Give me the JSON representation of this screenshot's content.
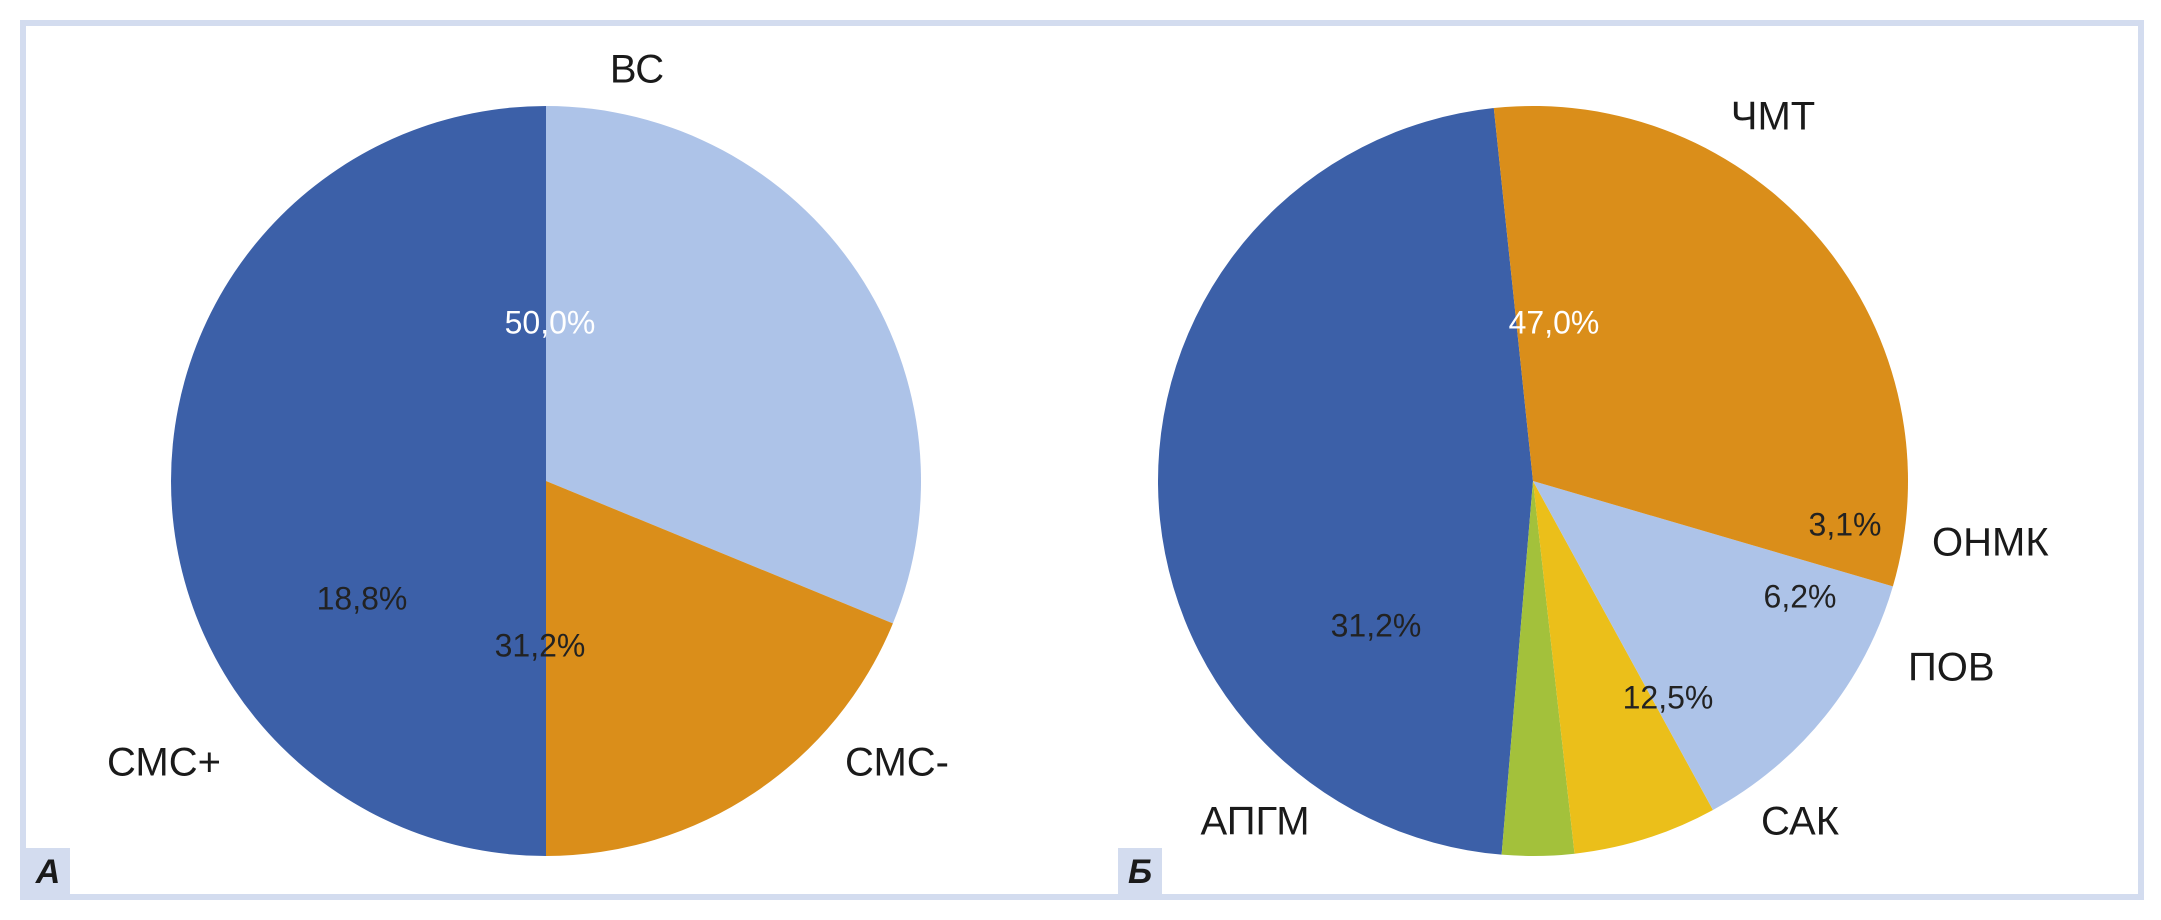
{
  "colors": {
    "frame": "#d3dcef",
    "badge_bg": "#d3dcef",
    "label_text": "#1a1a1a",
    "inside_label_dark": "#222222",
    "inside_label_light": "#ffffff"
  },
  "panels": [
    {
      "letter": "А"
    },
    {
      "letter": "Б"
    }
  ],
  "chart_data": [
    {
      "type": "pie",
      "panel": "А",
      "slices": [
        {
          "label": "ВС",
          "value": 50.0,
          "value_label": "50,0%",
          "color": "#3c60a8",
          "text_color": "#ffffff"
        },
        {
          "label": "СМС-",
          "value": 31.2,
          "value_label": "31,2%",
          "color": "#adc3e8",
          "text_color": "#222222"
        },
        {
          "label": "СМС+",
          "value": 18.8,
          "value_label": "18,8%",
          "color": "#da8e1a",
          "text_color": "#222222"
        }
      ]
    },
    {
      "type": "pie",
      "panel": "Б",
      "slices": [
        {
          "label": "ЧМТ",
          "value": 47.0,
          "value_label": "47,0%",
          "color": "#3c60a8",
          "text_color": "#ffffff"
        },
        {
          "label": "ОНМК",
          "value": 3.1,
          "value_label": "3,1%",
          "color": "#a3c13b",
          "text_color": "#222222"
        },
        {
          "label": "ПОВ",
          "value": 6.2,
          "value_label": "6,2%",
          "color": "#ebbf1a",
          "text_color": "#222222"
        },
        {
          "label": "САК",
          "value": 12.5,
          "value_label": "12,5%",
          "color": "#adc3e8",
          "text_color": "#222222"
        },
        {
          "label": "АПГМ",
          "value": 31.2,
          "value_label": "31,2%",
          "color": "#da8e1a",
          "text_color": "#222222"
        }
      ]
    }
  ]
}
